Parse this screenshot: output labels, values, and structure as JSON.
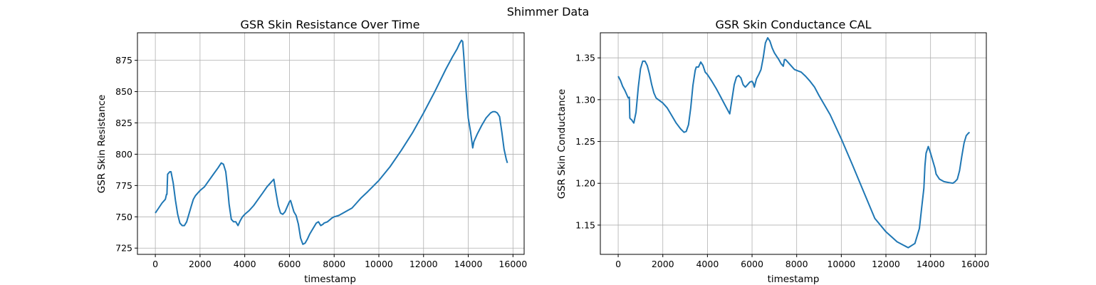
{
  "figure": {
    "suptitle": "Shimmer Data"
  },
  "colors": {
    "line": "#1f77b4",
    "grid": "#b0b0b0",
    "axis": "#000000",
    "background": "#ffffff"
  },
  "chart_data": [
    {
      "type": "line",
      "title": "GSR Skin Resistance Over Time",
      "xlabel": "timestamp",
      "ylabel": "GSR Skin Resistance",
      "xlim": [
        -800,
        16500
      ],
      "ylim": [
        720,
        897
      ],
      "xticks": [
        0,
        2000,
        4000,
        6000,
        8000,
        10000,
        12000,
        14000,
        16000
      ],
      "yticks": [
        725,
        750,
        775,
        800,
        825,
        850,
        875
      ],
      "grid": true,
      "series": [
        {
          "x": [
            0,
            150,
            300,
            450,
            500,
            520,
            550,
            600,
            650,
            700,
            800,
            900,
            1000,
            1100,
            1200,
            1300,
            1400,
            1500,
            1600,
            1700,
            1800,
            1900,
            2000,
            2200,
            2400,
            2600,
            2800,
            2950,
            3050,
            3150,
            3250,
            3300,
            3400,
            3500,
            3600,
            3700,
            3800,
            3900,
            4000,
            4200,
            4400,
            4600,
            4800,
            5000,
            5200,
            5300,
            5400,
            5500,
            5600,
            5700,
            5800,
            5900,
            6000,
            6050,
            6100,
            6200,
            6300,
            6400,
            6500,
            6600,
            6700,
            6800,
            6900,
            7000,
            7100,
            7200,
            7300,
            7400,
            7500,
            7550,
            7700,
            7900,
            8000,
            8200,
            8400,
            8600,
            8800,
            9000,
            9200,
            9500,
            10000,
            10500,
            11000,
            11500,
            12000,
            12500,
            13000,
            13300,
            13500,
            13600,
            13700,
            13750,
            13800,
            13900,
            14000,
            14100,
            14200,
            14250,
            14400,
            14600,
            14800,
            15000,
            15100,
            15200,
            15300,
            15400,
            15500,
            15600,
            15700,
            15750
          ],
          "y": [
            753,
            757,
            761,
            764,
            768,
            768,
            784,
            785,
            786,
            786,
            777,
            763,
            752,
            745,
            743,
            743,
            746,
            752,
            758,
            764,
            767,
            769,
            771,
            774,
            779,
            784,
            789,
            793,
            792,
            786,
            770,
            760,
            748,
            746,
            746,
            743,
            747,
            750,
            752,
            755,
            759,
            764,
            769,
            774,
            778,
            780,
            769,
            759,
            753,
            752,
            754,
            758,
            762,
            763,
            760,
            754,
            751,
            744,
            733,
            728,
            729,
            732,
            736,
            739,
            742,
            745,
            746,
            743,
            744,
            745,
            746,
            749,
            750,
            751,
            753,
            755,
            757,
            761,
            765,
            770,
            779,
            790,
            803,
            817,
            833,
            850,
            868,
            878,
            884,
            888,
            891,
            890,
            878,
            851,
            829,
            818,
            805,
            810,
            816,
            823,
            829,
            833,
            834,
            834,
            833,
            830,
            818,
            804,
            796,
            793
          ]
        }
      ]
    },
    {
      "type": "line",
      "title": "GSR Skin Conductance CAL",
      "xlabel": "timestamp",
      "ylabel": "GSR Skin Conductance",
      "xlim": [
        -800,
        16500
      ],
      "ylim": [
        1.115,
        1.38
      ],
      "xticks": [
        0,
        2000,
        4000,
        6000,
        8000,
        10000,
        12000,
        14000,
        16000
      ],
      "yticks": [
        1.15,
        1.2,
        1.25,
        1.3,
        1.35
      ],
      "grid": true,
      "series": [
        {
          "x": [
            0,
            100,
            200,
            300,
            400,
            450,
            500,
            520,
            550,
            600,
            650,
            700,
            800,
            900,
            1000,
            1100,
            1200,
            1300,
            1400,
            1500,
            1600,
            1700,
            1800,
            1900,
            2000,
            2200,
            2400,
            2600,
            2800,
            2950,
            3050,
            3150,
            3250,
            3350,
            3450,
            3500,
            3600,
            3700,
            3800,
            3900,
            4000,
            4200,
            4400,
            4600,
            4800,
            5000,
            5200,
            5300,
            5400,
            5500,
            5600,
            5700,
            5800,
            5900,
            6000,
            6050,
            6100,
            6200,
            6300,
            6400,
            6500,
            6600,
            6700,
            6800,
            6900,
            7000,
            7100,
            7200,
            7300,
            7400,
            7450,
            7500,
            7600,
            7700,
            7900,
            8000,
            8200,
            8400,
            8600,
            8800,
            9000,
            9500,
            10000,
            10500,
            11000,
            11500,
            12000,
            12500,
            13000,
            13300,
            13500,
            13600,
            13700,
            13750,
            13800,
            13900,
            14000,
            14100,
            14200,
            14250,
            14400,
            14600,
            14800,
            15000,
            15100,
            15200,
            15300,
            15400,
            15500,
            15600,
            15700,
            15750
          ],
          "y": [
            1.328,
            1.323,
            1.316,
            1.311,
            1.305,
            1.302,
            1.303,
            1.278,
            1.277,
            1.276,
            1.274,
            1.272,
            1.285,
            1.315,
            1.337,
            1.346,
            1.346,
            1.341,
            1.331,
            1.318,
            1.308,
            1.302,
            1.3,
            1.298,
            1.296,
            1.29,
            1.281,
            1.272,
            1.265,
            1.261,
            1.262,
            1.27,
            1.29,
            1.317,
            1.335,
            1.339,
            1.339,
            1.345,
            1.341,
            1.333,
            1.33,
            1.322,
            1.313,
            1.303,
            1.293,
            1.283,
            1.318,
            1.327,
            1.329,
            1.326,
            1.318,
            1.315,
            1.318,
            1.321,
            1.322,
            1.32,
            1.315,
            1.325,
            1.33,
            1.336,
            1.35,
            1.368,
            1.374,
            1.37,
            1.362,
            1.356,
            1.352,
            1.348,
            1.343,
            1.34,
            1.348,
            1.348,
            1.345,
            1.342,
            1.336,
            1.335,
            1.333,
            1.328,
            1.322,
            1.315,
            1.305,
            1.282,
            1.253,
            1.222,
            1.19,
            1.158,
            1.142,
            1.13,
            1.123,
            1.128,
            1.146,
            1.17,
            1.194,
            1.221,
            1.236,
            1.244,
            1.236,
            1.227,
            1.218,
            1.211,
            1.205,
            1.202,
            1.201,
            1.2,
            1.202,
            1.205,
            1.215,
            1.232,
            1.248,
            1.257,
            1.26,
            1.261
          ]
        }
      ]
    }
  ]
}
